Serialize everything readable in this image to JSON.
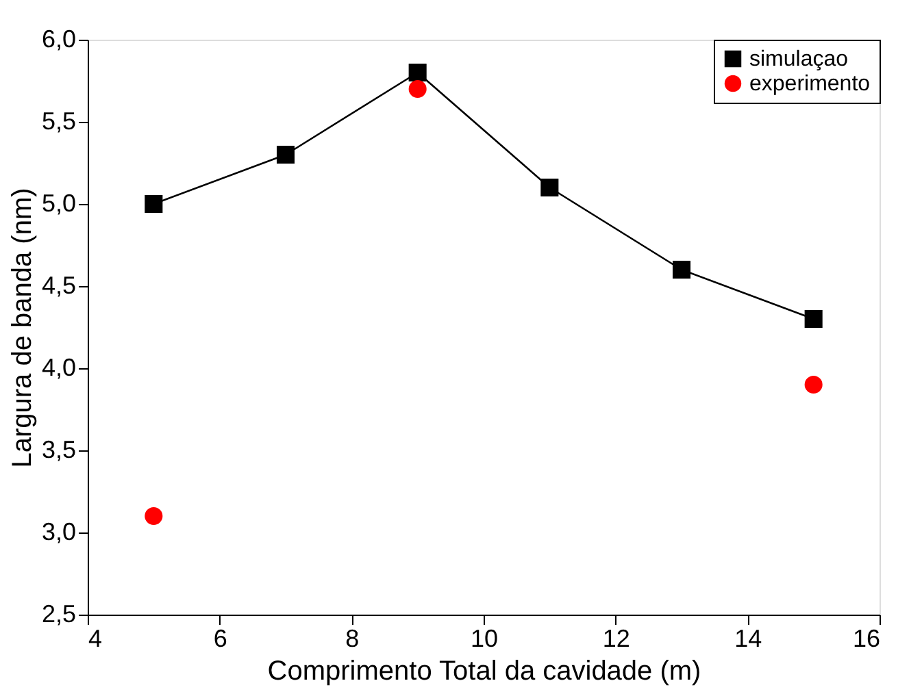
{
  "chart_data": {
    "type": "line",
    "xlabel": "Comprimento Total da cavidade (m)",
    "ylabel": "Largura de banda (nm)",
    "xlim": [
      4,
      16
    ],
    "xticks": [
      4,
      6,
      8,
      10,
      12,
      14,
      16
    ],
    "ylim": [
      2.5,
      6.0
    ],
    "yticks": [
      {
        "value": 2.5,
        "label": "2,5"
      },
      {
        "value": 3.0,
        "label": "3,0"
      },
      {
        "value": 3.5,
        "label": "3,5"
      },
      {
        "value": 4.0,
        "label": "4,0"
      },
      {
        "value": 4.5,
        "label": "4,5"
      },
      {
        "value": 5.0,
        "label": "5,0"
      },
      {
        "value": 5.5,
        "label": "5,5"
      },
      {
        "value": 6.0,
        "label": "6,0"
      }
    ],
    "legend": "top right",
    "grid": false,
    "series": [
      {
        "name": "simulaçao",
        "marker": "square",
        "color": "#000000",
        "x": [
          5,
          7,
          9,
          11,
          13,
          15
        ],
        "values": [
          5.0,
          5.3,
          5.8,
          5.1,
          4.6,
          4.3
        ]
      },
      {
        "name": "experimento",
        "type": "scatter",
        "marker": "circle",
        "color": "#ff0000",
        "x": [
          5,
          9,
          15
        ],
        "values": [
          3.1,
          5.7,
          3.9
        ]
      }
    ]
  }
}
